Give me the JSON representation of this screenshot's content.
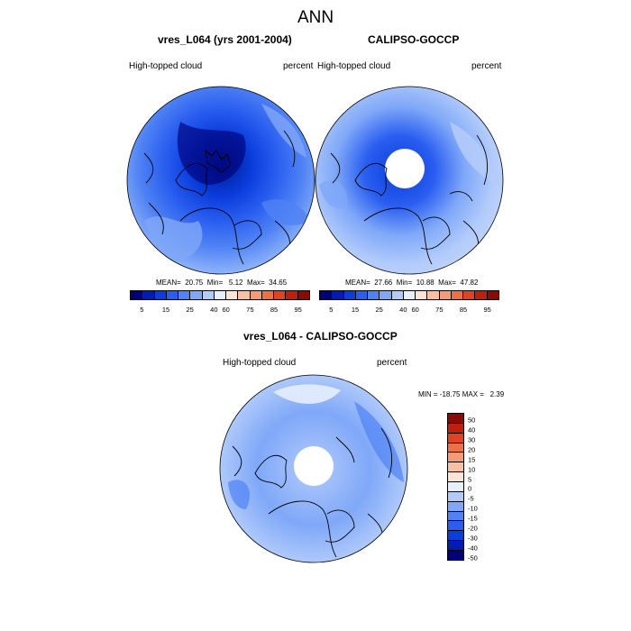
{
  "figure": {
    "title": "ANN"
  },
  "panels": [
    {
      "title": "vres_L064 (yrs 2001-2004)",
      "left_label": "High-topped cloud",
      "right_label": "percent",
      "stats": "MEAN=  20.75  Min=   5.12  Max=  34.65"
    },
    {
      "title": "CALIPSO-GOCCP",
      "left_label": "High-topped cloud",
      "right_label": "percent",
      "stats": "MEAN=  27.66  Min=  10.88  Max=  47.82"
    },
    {
      "title": "vres_L064 - CALIPSO-GOCCP",
      "left_label": "High-topped cloud",
      "right_label": "percent",
      "stats": "MIN = -18.75 MAX =   2.39"
    }
  ],
  "colorbar_abs": {
    "colors": [
      "#00007a",
      "#001cb4",
      "#0a3ddc",
      "#2a5ef0",
      "#4f82f4",
      "#7fa8f8",
      "#b2cbfb",
      "#e7eefd",
      "#fde4d6",
      "#fac0a4",
      "#f59a76",
      "#ee7048",
      "#df4324",
      "#bf200e",
      "#8c0a04"
    ],
    "ticks": [
      "5",
      "15",
      "25",
      "40",
      "60",
      "75",
      "85",
      "95"
    ]
  },
  "colorbar_diff": {
    "colors": [
      "#8c0a04",
      "#bf200e",
      "#df4324",
      "#ee7048",
      "#f59a76",
      "#fac0a4",
      "#fde4d6",
      "#e7eefd",
      "#b2cbfb",
      "#7fa8f8",
      "#4f82f4",
      "#2a5ef0",
      "#0a3ddc",
      "#001cb4",
      "#00007a"
    ],
    "ticks": [
      "50",
      "40",
      "30",
      "20",
      "15",
      "10",
      "5",
      "0",
      "-5",
      "-10",
      "-15",
      "-20",
      "-30",
      "-40",
      "-50"
    ]
  },
  "chart_data": [
    {
      "type": "heatmap",
      "title": "vres_L064 (yrs 2001-2004)",
      "variable": "High-topped cloud",
      "units": "percent",
      "projection": "north polar stereographic",
      "mean": 20.75,
      "min": 5.12,
      "max": 34.65,
      "levels": [
        5,
        10,
        15,
        20,
        25,
        30,
        40,
        50,
        60,
        70,
        75,
        80,
        85,
        90,
        95
      ]
    },
    {
      "type": "heatmap",
      "title": "CALIPSO-GOCCP",
      "variable": "High-topped cloud",
      "units": "percent",
      "projection": "north polar stereographic",
      "mean": 27.66,
      "min": 10.88,
      "max": 47.82,
      "levels": [
        5,
        10,
        15,
        20,
        25,
        30,
        40,
        50,
        60,
        70,
        75,
        80,
        85,
        90,
        95
      ]
    },
    {
      "type": "heatmap",
      "title": "vres_L064 - CALIPSO-GOCCP",
      "variable": "High-topped cloud",
      "units": "percent",
      "projection": "north polar stereographic",
      "min": -18.75,
      "max": 2.39,
      "levels": [
        -50,
        -40,
        -30,
        -20,
        -15,
        -10,
        -5,
        0,
        5,
        10,
        15,
        20,
        30,
        40,
        50
      ]
    }
  ]
}
